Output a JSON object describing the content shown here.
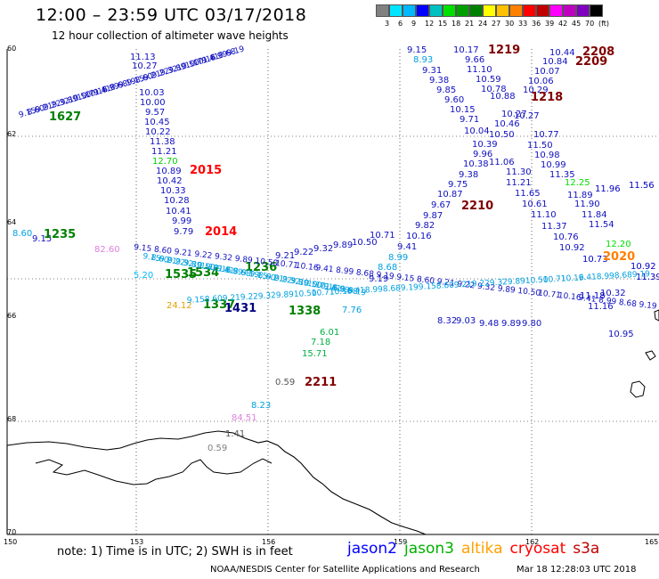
{
  "header": {
    "title": "12:00 – 23:59 UTC 03/17/2018",
    "subtitle": "12 hour collection of altimeter wave heights"
  },
  "colorbar": {
    "colors": [
      "#808080",
      "#00e5ff",
      "#00b8ff",
      "#0000ff",
      "#00c0c0",
      "#00e000",
      "#00a000",
      "#008000",
      "#ffff00",
      "#ffc000",
      "#ff8000",
      "#ff0000",
      "#c00000",
      "#ff00ff",
      "#c000c0",
      "#8000c0",
      "#000000"
    ],
    "labels": [
      "3",
      "6",
      "9",
      "12",
      "15",
      "18",
      "21",
      "24",
      "27",
      "30",
      "33",
      "36",
      "39",
      "42",
      "45",
      "70",
      "(ft)"
    ]
  },
  "map": {
    "lat_labels": [
      "60",
      "62",
      "64",
      "66",
      "68",
      "70"
    ],
    "lon_labels": [
      "150",
      "153",
      "156",
      "159",
      "162",
      "165"
    ],
    "time_labels": [
      {
        "text": "1219",
        "color": "#800000"
      },
      {
        "text": "2208",
        "color": "#800000"
      },
      {
        "text": "2209",
        "color": "#800000"
      },
      {
        "text": "1218",
        "color": "#800000"
      },
      {
        "text": "2015",
        "color": "#ff0000"
      },
      {
        "text": "2014",
        "color": "#ff0000"
      },
      {
        "text": "2210",
        "color": "#800000"
      },
      {
        "text": "2211",
        "color": "#800000"
      },
      {
        "text": "1235",
        "color": "#008000"
      },
      {
        "text": "1535",
        "color": "#008000"
      },
      {
        "text": "1534",
        "color": "#008000"
      },
      {
        "text": "1236",
        "color": "#008000"
      },
      {
        "text": "1337",
        "color": "#008000"
      },
      {
        "text": "1338",
        "color": "#008000"
      },
      {
        "text": "1627",
        "color": "#008000"
      },
      {
        "text": "1431",
        "color": "#000080"
      },
      {
        "text": "2020",
        "color": "#ff8000"
      }
    ],
    "track1_values": [
      "11.13",
      "10.27",
      "10.03",
      "10.00",
      "9.57",
      "10.45",
      "10.22",
      "11.38",
      "11.21",
      "12.70",
      "10.89",
      "10.42",
      "10.33",
      "10.28",
      "10.41",
      "9.99",
      "9.79"
    ],
    "track2_values": [
      "9.15",
      "8.93",
      "9.31",
      "9.38",
      "9.85",
      "9.60",
      "9.71",
      "10.15",
      "10.04",
      "9.96",
      "10.38",
      "9.38",
      "9.75",
      "10.87",
      "9.67",
      "9.87",
      "9.82"
    ],
    "track3_values": [
      "10.17",
      "9.66",
      "11.10",
      "10.59",
      "10.78",
      "10.88",
      "10.50",
      "10.27",
      "10.46",
      "10.39",
      "11.06",
      "11.30",
      "11.21",
      "11.65",
      "10.61",
      "11.10",
      "11.37",
      "10.76",
      "10.92"
    ],
    "track4_values": [
      "10.44",
      "10.84",
      "10.07",
      "10.06",
      "10.29",
      "10.27",
      "10.77",
      "11.50",
      "10.98",
      "10.99",
      "11.35",
      "11.89",
      "11.90",
      "11.84",
      "11.54",
      "11.16",
      "10.32",
      "10.95"
    ],
    "track5_values": [
      "9.15",
      "8.60",
      "9.21",
      "9.22",
      "9.32",
      "9.89",
      "10.50",
      "10.71",
      "10.16",
      "9.41",
      "8.99",
      "8.68",
      "9.19"
    ],
    "track6_values": [
      "6.01",
      "7.18",
      "15.71",
      "7.76",
      "8.32",
      "9.03",
      "9.48",
      "9.89",
      "9.80"
    ],
    "misc_values": [
      {
        "text": "0.59",
        "color": "#555555"
      },
      {
        "text": "8.23",
        "color": "#00a0e0"
      },
      {
        "text": "84.51",
        "color": "#e080e0"
      },
      {
        "text": "1.41",
        "color": "#555555"
      },
      {
        "text": "0.59",
        "color": "#808080"
      },
      {
        "text": "24.12",
        "color": "#e0a000"
      },
      {
        "text": "5.20",
        "color": "#00b8ff"
      },
      {
        "text": "82.60",
        "color": "#e080e0"
      },
      {
        "text": "12.25",
        "color": "#00e000"
      },
      {
        "text": "12.20",
        "color": "#00e000"
      },
      {
        "text": "11.96",
        "color": "#0000c0"
      },
      {
        "text": "11.56",
        "color": "#0000c0"
      },
      {
        "text": "10.92",
        "color": "#0000c0"
      },
      {
        "text": "11.39",
        "color": "#0000c0"
      },
      {
        "text": "10.73",
        "color": "#0000c0"
      },
      {
        "text": "11.18",
        "color": "#0000c0"
      }
    ]
  },
  "footer": {
    "note": "note:  1) Time is in UTC;  2) SWH is in feet",
    "satellites": [
      {
        "name": "jason2",
        "color": "#0000ff"
      },
      {
        "name": "jason3",
        "color": "#00b000"
      },
      {
        "name": "altika",
        "color": "#ffa000"
      },
      {
        "name": "cryosat",
        "color": "#ff0000"
      },
      {
        "name": "s3a",
        "color": "#c00000"
      }
    ],
    "credit": "NOAA/NESDIS Center for Satellite Applications and Research",
    "timestamp": "Mar 18 12:28:03 UTC 2018"
  }
}
